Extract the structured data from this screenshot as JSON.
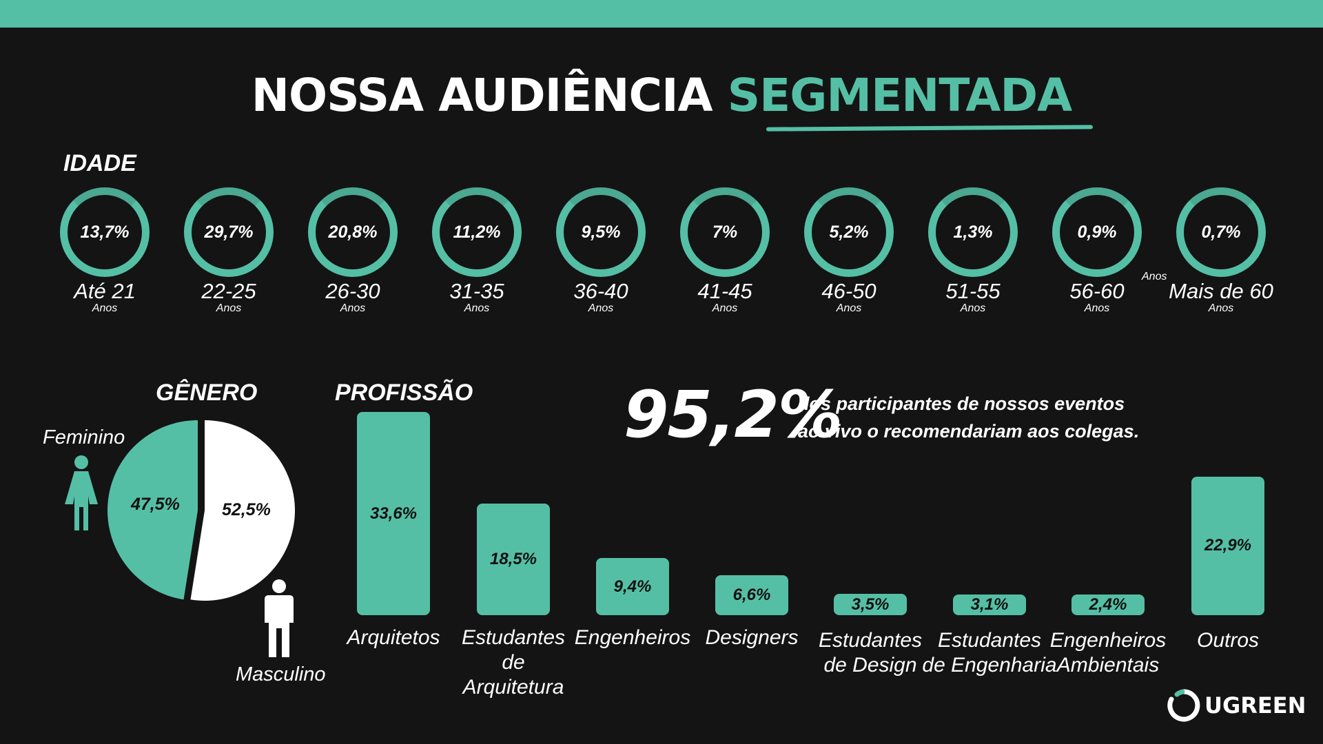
{
  "header": {
    "title_white": "NOSSA AUDIÊNCIA",
    "title_green": "SEGMENTADA"
  },
  "sections": {
    "idade": "IDADE",
    "genero": "GÊNERO",
    "profissao": "PROFISSÃO"
  },
  "age": {
    "unit": "Anos",
    "extra_unit": "Anos",
    "items": [
      {
        "value": "13,7%",
        "label": "Até 21"
      },
      {
        "value": "29,7%",
        "label": "22-25"
      },
      {
        "value": "20,8%",
        "label": "26-30"
      },
      {
        "value": "11,2%",
        "label": "31-35"
      },
      {
        "value": "9,5%",
        "label": "36-40"
      },
      {
        "value": "7%",
        "label": "41-45"
      },
      {
        "value": "5,2%",
        "label": "46-50"
      },
      {
        "value": "1,3%",
        "label": "51-55"
      },
      {
        "value": "0,9%",
        "label": "56-60"
      },
      {
        "value": "0,7%",
        "label": "Mais de 60"
      }
    ]
  },
  "gender": {
    "feminino_label": "Feminino",
    "masculino_label": "Masculino",
    "feminino_value": "47,5%",
    "masculino_value": "52,5%"
  },
  "highlight": {
    "value": "95,2%",
    "line1": "dos participantes de nossos eventos",
    "line2": "ao vivo o recomendariam aos colegas."
  },
  "profession": {
    "items": [
      {
        "value": "33,6%",
        "label_lines": [
          "Arquitetos"
        ]
      },
      {
        "value": "18,5%",
        "label_lines": [
          "Estudantes",
          "de",
          "Arquitetura"
        ]
      },
      {
        "value": "9,4%",
        "label_lines": [
          "Engenheiros"
        ]
      },
      {
        "value": "6,6%",
        "label_lines": [
          "Designers"
        ]
      },
      {
        "value": "3,5%",
        "label_lines": [
          "Estudantes",
          "de Design"
        ]
      },
      {
        "value": "3,1%",
        "label_lines": [
          "Estudantes",
          "de Engenharia"
        ]
      },
      {
        "value": "2,4%",
        "label_lines": [
          "Engenheiros",
          "Ambientais"
        ]
      },
      {
        "value": "22,9%",
        "label_lines": [
          "Outros"
        ]
      }
    ]
  },
  "chart_data": [
    {
      "type": "bar",
      "title": "IDADE",
      "categories": [
        "Até 21",
        "22-25",
        "26-30",
        "31-35",
        "36-40",
        "41-45",
        "46-50",
        "51-55",
        "56-60",
        "Mais de 60"
      ],
      "values": [
        13.7,
        29.7,
        20.8,
        11.2,
        9.5,
        7,
        5.2,
        1.3,
        0.9,
        0.7
      ]
    },
    {
      "type": "pie",
      "title": "GÊNERO",
      "categories": [
        "Feminino",
        "Masculino"
      ],
      "values": [
        47.5,
        52.5
      ]
    },
    {
      "type": "bar",
      "title": "PROFISSÃO",
      "categories": [
        "Arquitetos",
        "Estudantes de Arquitetura",
        "Engenheiros",
        "Designers",
        "Estudantes de Design",
        "Estudantes de Engenharia",
        "Engenheiros Ambientais",
        "Outros"
      ],
      "values": [
        33.6,
        18.5,
        9.4,
        6.6,
        3.5,
        3.1,
        2.4,
        22.9
      ]
    }
  ],
  "brand": {
    "logo_text": "UGREEN",
    "accent": "#55bfa5",
    "background": "#141414"
  }
}
